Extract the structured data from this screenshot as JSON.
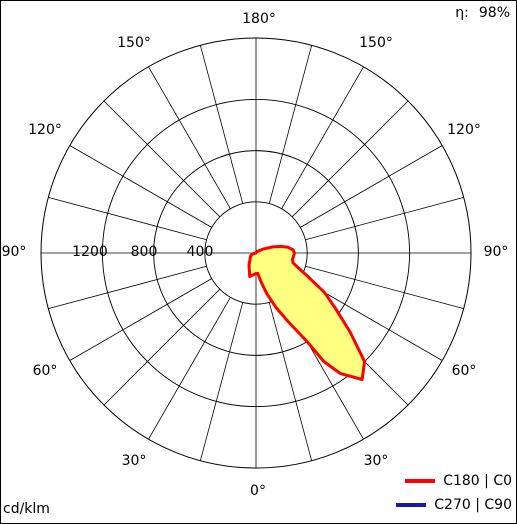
{
  "efficiency": {
    "label": "η:",
    "value": "98%"
  },
  "unit": "cd/klm",
  "colors": {
    "fill": "#ffff80",
    "c0": "#ff0000",
    "c90": "#1a1aa6",
    "grid": "#000000"
  },
  "angle_labels": [
    "180°",
    "150°",
    "150°",
    "120°",
    "120°",
    "90°",
    "90°",
    "60°",
    "60°",
    "30°",
    "30°",
    "0°"
  ],
  "radial_labels": [
    "1200",
    "800",
    "400"
  ],
  "legend": [
    {
      "label": "C180 | C0",
      "color": "#ff0000"
    },
    {
      "label": "C270 | C90",
      "color": "#1a1aa6"
    }
  ],
  "chart_data": {
    "type": "polar",
    "unit": "cd/klm",
    "r_ticks": [
      400,
      800,
      1200
    ],
    "r_max": 1680,
    "angle_step_deg": 15,
    "series": [
      {
        "name": "C180 | C0",
        "color": "#ff0000",
        "fill": "#ffff80",
        "points_deg_value": [
          [
            -90,
            0
          ],
          [
            -75,
            30
          ],
          [
            -60,
            50
          ],
          [
            -45,
            65
          ],
          [
            -30,
            110
          ],
          [
            -15,
            190
          ],
          [
            0,
            160
          ],
          [
            5,
            160
          ],
          [
            10,
            230
          ],
          [
            15,
            330
          ],
          [
            20,
            450
          ],
          [
            25,
            590
          ],
          [
            30,
            800
          ],
          [
            32,
            1000
          ],
          [
            35,
            1150
          ],
          [
            40,
            1290
          ],
          [
            45,
            1200
          ],
          [
            50,
            960
          ],
          [
            55,
            760
          ],
          [
            60,
            620
          ],
          [
            65,
            460
          ],
          [
            70,
            360
          ],
          [
            75,
            300
          ],
          [
            80,
            290
          ],
          [
            85,
            295
          ],
          [
            90,
            300
          ],
          [
            95,
            290
          ],
          [
            100,
            255
          ],
          [
            105,
            200
          ],
          [
            110,
            140
          ],
          [
            120,
            60
          ],
          [
            135,
            20
          ],
          [
            150,
            10
          ],
          [
            180,
            0
          ]
        ]
      },
      {
        "name": "C270 | C90",
        "color": "#1a1aa6",
        "points_deg_value": []
      }
    ]
  }
}
